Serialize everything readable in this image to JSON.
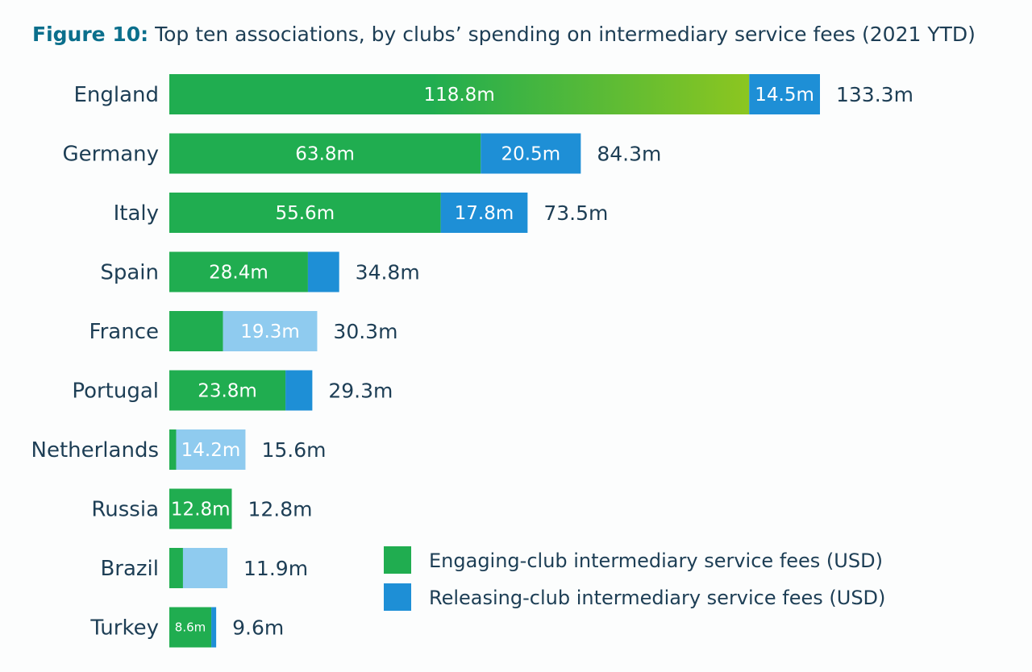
{
  "title": {
    "label": "Figure 10:",
    "text": "Top ten associations, by clubs’ spending on intermediary service fees (2021 YTD)"
  },
  "colors": {
    "engaging": "#20ad50",
    "engaging_highlight": "#8cc620",
    "releasing": "#1e8fd6",
    "releasing_light": "#8fcbef",
    "text": "#1d3e55"
  },
  "chart_data": {
    "type": "bar",
    "orientation": "horizontal",
    "stacked": true,
    "title": "Figure 10: Top ten associations, by clubs’ spending on intermediary service fees (2021 YTD)",
    "unit": "USD millions",
    "categories": [
      "England",
      "Germany",
      "Italy",
      "Spain",
      "France",
      "Portugal",
      "Netherlands",
      "Russia",
      "Brazil",
      "Turkey"
    ],
    "series": [
      {
        "name": "Engaging-club intermediary service fees (USD)",
        "values": [
          118.8,
          63.8,
          55.6,
          28.4,
          11.0,
          23.8,
          1.4,
          12.8,
          2.8,
          8.6
        ],
        "labels": [
          "118.8m",
          "63.8m",
          "55.6m",
          "28.4m",
          "",
          "23.8m",
          "",
          "12.8m",
          "",
          "8.6m"
        ]
      },
      {
        "name": "Releasing-club intermediary service fees (USD)",
        "values": [
          14.5,
          20.5,
          17.8,
          6.4,
          19.3,
          5.5,
          14.2,
          0,
          9.1,
          1.0
        ],
        "labels": [
          "14.5m",
          "20.5m",
          "17.8m",
          "",
          "19.3m",
          "",
          "14.2m",
          "",
          "",
          ""
        ],
        "shade": [
          "dark",
          "dark",
          "dark",
          "dark",
          "light",
          "dark",
          "light",
          "dark",
          "light",
          "dark"
        ]
      }
    ],
    "totals": [
      "133.3m",
      "84.3m",
      "73.5m",
      "34.8m",
      "30.3m",
      "29.3m",
      "15.6m",
      "12.8m",
      "11.9m",
      "9.6m"
    ],
    "total_values": [
      133.3,
      84.3,
      73.5,
      34.8,
      30.3,
      29.3,
      15.6,
      12.8,
      11.9,
      9.6
    ],
    "xlim": [
      0,
      133.3
    ],
    "legend_position": "bottom-right"
  }
}
